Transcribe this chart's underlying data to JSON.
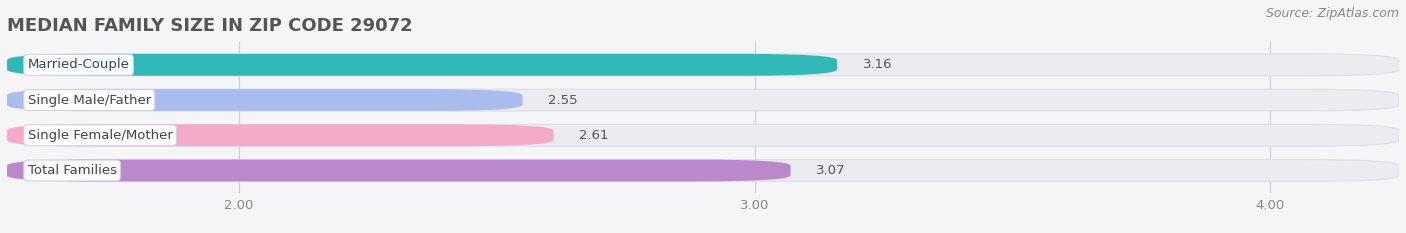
{
  "title": "MEDIAN FAMILY SIZE IN ZIP CODE 29072",
  "source": "Source: ZipAtlas.com",
  "categories": [
    "Married-Couple",
    "Single Male/Father",
    "Single Female/Mother",
    "Total Families"
  ],
  "values": [
    3.16,
    2.55,
    2.61,
    3.07
  ],
  "bar_colors": [
    "#30b8b8",
    "#aabbee",
    "#f4aac8",
    "#bb88cc"
  ],
  "xlim_left": 1.55,
  "xlim_right": 4.25,
  "xticks": [
    2.0,
    3.0,
    4.0
  ],
  "xtick_labels": [
    "2.00",
    "3.00",
    "4.00"
  ],
  "bar_height": 0.62,
  "bg_color": "#f5f5f8",
  "bar_bg_color": "#ebebf0",
  "bar_bg_edge": "#ddddea",
  "grid_color": "#ccccdd",
  "title_fontsize": 13,
  "label_fontsize": 9.5,
  "value_fontsize": 9.5,
  "source_fontsize": 9
}
